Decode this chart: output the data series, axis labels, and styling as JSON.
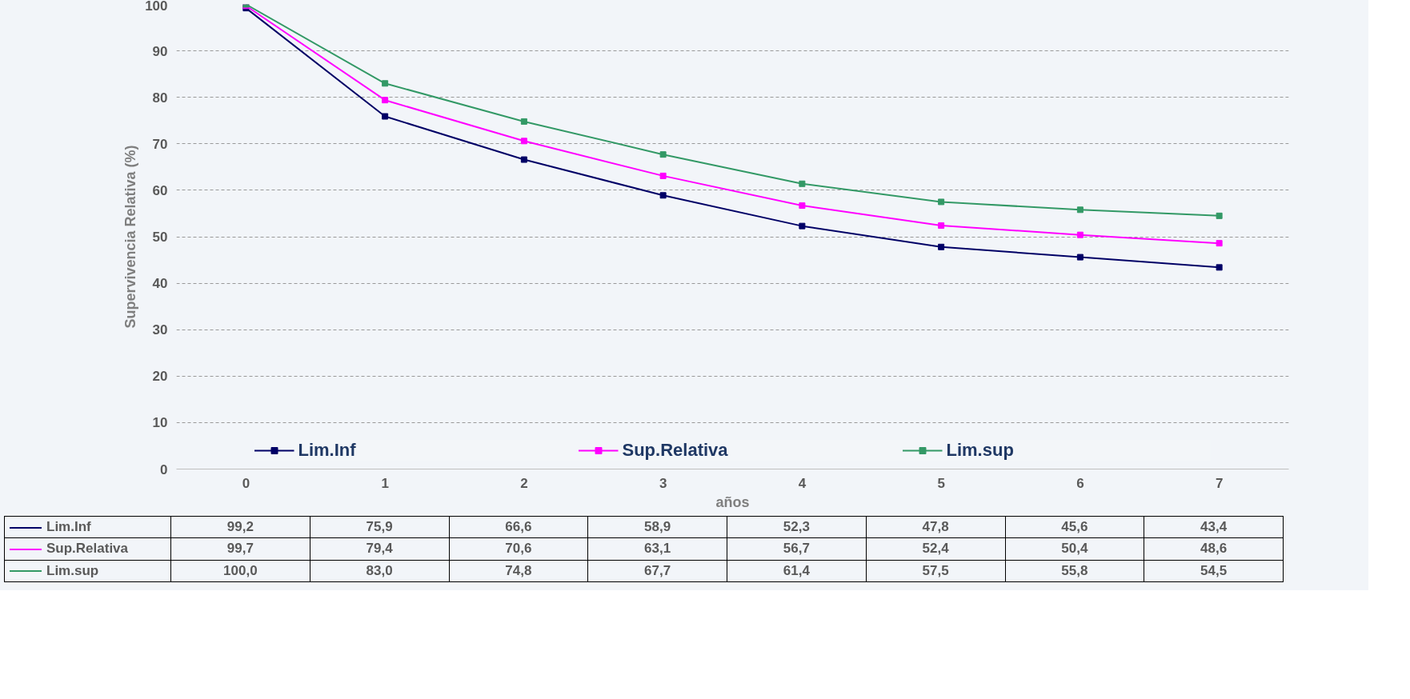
{
  "chart_data": {
    "type": "line",
    "ylabel": "Supervivencia Relativa (%)",
    "xlabel": "años",
    "categories": [
      "0",
      "1",
      "2",
      "3",
      "4",
      "5",
      "6",
      "7"
    ],
    "series": [
      {
        "name": "Lim.Inf",
        "color": "#000066",
        "values": [
          99.2,
          75.9,
          66.6,
          58.9,
          52.3,
          47.8,
          45.6,
          43.4
        ],
        "value_labels": [
          "99,2",
          "75,9",
          "66,6",
          "58,9",
          "52,3",
          "47,8",
          "45,6",
          "43,4"
        ]
      },
      {
        "name": "Sup.Relativa",
        "color": "#ff00ff",
        "values": [
          99.7,
          79.4,
          70.6,
          63.1,
          56.7,
          52.4,
          50.4,
          48.6
        ],
        "value_labels": [
          "99,7",
          "79,4",
          "70,6",
          "63,1",
          "56,7",
          "52,4",
          "50,4",
          "48,6"
        ]
      },
      {
        "name": "Lim.sup",
        "color": "#339966",
        "values": [
          100.0,
          83.0,
          74.8,
          67.7,
          61.4,
          57.5,
          55.8,
          54.5
        ],
        "value_labels": [
          "100,0",
          "83,0",
          "74,8",
          "67,7",
          "61,4",
          "57,5",
          "55,8",
          "54,5"
        ]
      }
    ],
    "ylim": [
      0,
      100
    ],
    "yticks": [
      0,
      10,
      20,
      30,
      40,
      50,
      60,
      70,
      80,
      90,
      100
    ],
    "grid": "y",
    "legend": "bottom",
    "marker": "square",
    "line_style": "solid"
  }
}
